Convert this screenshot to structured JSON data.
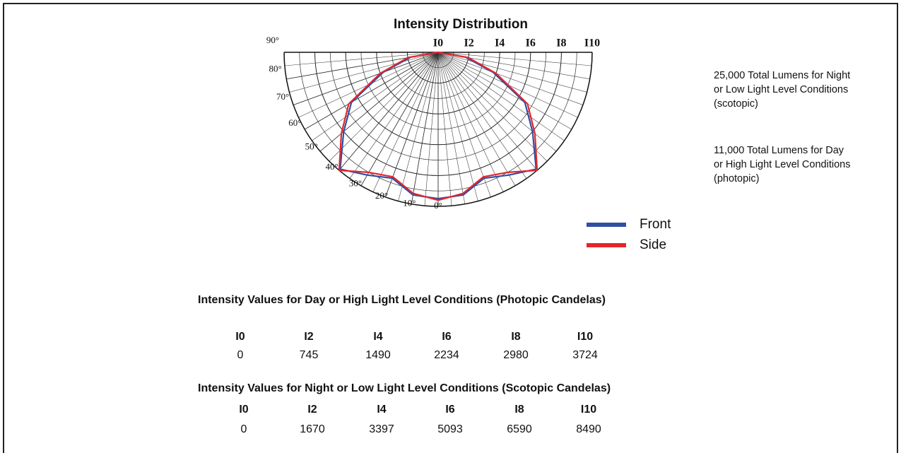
{
  "chart_data": {
    "type": "polar",
    "title": "Intensity Distribution",
    "angles": [
      -90,
      -80,
      -70,
      -60,
      -50,
      -40,
      -30,
      -20,
      -10,
      0,
      10,
      20,
      30,
      40,
      50,
      60,
      70,
      80,
      90
    ],
    "series": [
      {
        "name": "Front",
        "color": "#2f4fa3",
        "values": [
          0,
          1.8,
          3.8,
          6.5,
          8.0,
          9.9,
          9.2,
          8.7,
          9.4,
          9.5,
          9.4,
          8.7,
          9.2,
          9.9,
          8.0,
          6.5,
          3.8,
          1.8,
          0
        ]
      },
      {
        "name": "Side",
        "color": "#e3262b",
        "values": [
          0,
          2.0,
          4.0,
          6.7,
          8.2,
          10.0,
          9.0,
          8.6,
          9.3,
          9.6,
          9.3,
          8.6,
          9.0,
          10.0,
          8.2,
          6.7,
          4.0,
          2.0,
          0
        ]
      }
    ],
    "rlim": [
      0,
      10
    ],
    "rticks": [
      {
        "value": 0,
        "label": "I0"
      },
      {
        "value": 2,
        "label": "I2"
      },
      {
        "value": 4,
        "label": "I4"
      },
      {
        "value": 6,
        "label": "I6"
      },
      {
        "value": 8,
        "label": "I8"
      },
      {
        "value": 10,
        "label": "I10"
      }
    ],
    "angleticks": [
      {
        "value": 90,
        "label": "90°"
      },
      {
        "value": 80,
        "label": "80°"
      },
      {
        "value": 70,
        "label": "70°"
      },
      {
        "value": 60,
        "label": "60°"
      },
      {
        "value": 50,
        "label": "50°"
      },
      {
        "value": 40,
        "label": "40°"
      },
      {
        "value": 30,
        "label": "30°"
      },
      {
        "value": 20,
        "label": "20°"
      },
      {
        "value": 10,
        "label": "10°"
      },
      {
        "value": 0,
        "label": "0°"
      }
    ],
    "grid": true,
    "legend": "bottom-right"
  },
  "notes": [
    "25,000 Total Lumens for Night",
    "or Low Light Level Conditions",
    "(scotopic)",
    "11,000 Total Lumens for Day",
    "or High Light Level Conditions",
    "(photopic)"
  ],
  "tables": [
    {
      "title": "Intensity Values for Day or High Light Level Conditions (Photopic Candelas)",
      "headers": [
        "I0",
        "I2",
        "I4",
        "I6",
        "I8",
        "I10"
      ],
      "values": [
        0,
        745,
        1490,
        2234,
        2980,
        3724
      ]
    },
    {
      "title": "Intensity Values for Night or Low Light Level Conditions (Scotopic Candelas)",
      "headers": [
        "I0",
        "I2",
        "I4",
        "I6",
        "I8",
        "I10"
      ],
      "values": [
        0,
        1670,
        3397,
        5093,
        6590,
        8490
      ]
    }
  ]
}
